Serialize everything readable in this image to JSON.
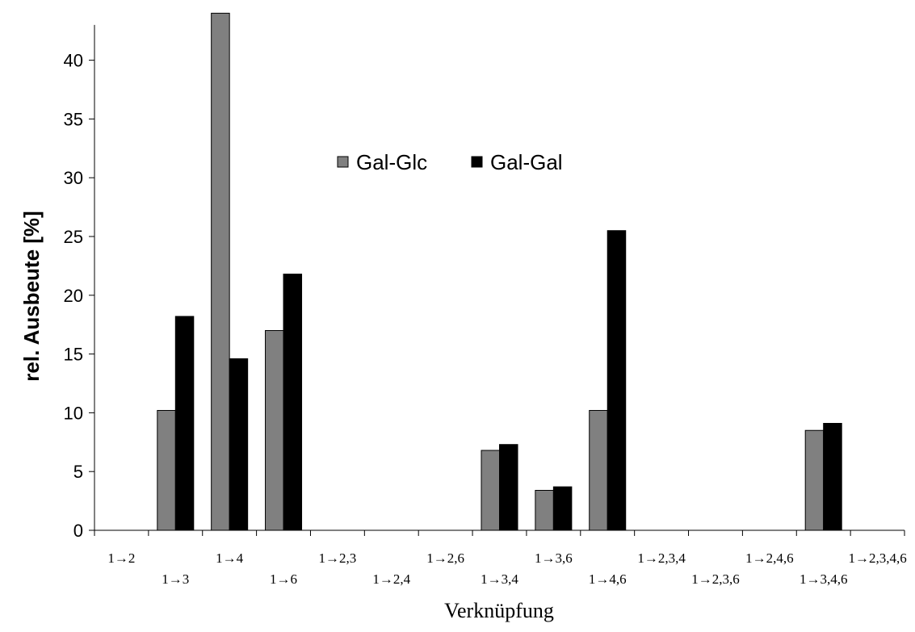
{
  "chart_data": {
    "type": "bar",
    "title": "",
    "xlabel": "Verknüpfung",
    "ylabel": "rel. Ausbeute [%]",
    "ylim": [
      0,
      43
    ],
    "yticks": [
      0,
      5,
      10,
      15,
      20,
      25,
      30,
      35,
      40
    ],
    "grid": false,
    "legend_position": "top-center",
    "categories": [
      "1→2",
      "1→3",
      "1→4",
      "1→6",
      "1→2,3",
      "1→2,4",
      "1→2,6",
      "1→3,4",
      "1→3,6",
      "1→4,6",
      "1→2,3,4",
      "1→2,3,6",
      "1→2,4,6",
      "1→3,4,6",
      "1→2,3,4,6"
    ],
    "series": [
      {
        "name": "Gal-Glc",
        "color": "#808080",
        "values": [
          0,
          10.2,
          44,
          17,
          0,
          0,
          0,
          6.8,
          3.4,
          10.2,
          0,
          0,
          0,
          8.5,
          0
        ]
      },
      {
        "name": "Gal-Gal",
        "color": "#000000",
        "values": [
          0,
          18.2,
          14.6,
          21.8,
          0,
          0,
          0,
          7.3,
          3.7,
          25.5,
          0,
          0,
          0,
          9.1,
          0
        ]
      }
    ]
  }
}
